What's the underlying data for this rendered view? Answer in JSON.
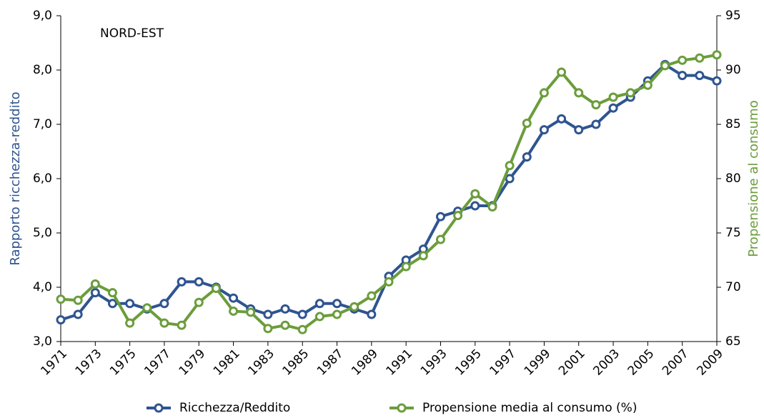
{
  "chart_data": {
    "type": "line",
    "annotation": "NORD-EST",
    "ylabel": "Rapporto ricchezza-reddito",
    "y2label": "Propensione al consumo",
    "x": [
      1971,
      1972,
      1973,
      1974,
      1975,
      1976,
      1977,
      1978,
      1979,
      1980,
      1981,
      1982,
      1983,
      1984,
      1985,
      1986,
      1987,
      1988,
      1989,
      1990,
      1991,
      1992,
      1993,
      1994,
      1995,
      1996,
      1997,
      1998,
      1999,
      2000,
      2001,
      2002,
      2003,
      2004,
      2005,
      2006,
      2007,
      2008,
      2009
    ],
    "xlim": [
      1971,
      2009
    ],
    "xticks": [
      1971,
      1973,
      1975,
      1977,
      1979,
      1981,
      1983,
      1985,
      1987,
      1989,
      1991,
      1993,
      1995,
      1997,
      1999,
      2001,
      2003,
      2005,
      2007,
      2009
    ],
    "ylim": [
      3,
      9
    ],
    "yticks": [
      {
        "value": 3,
        "label": "3,0"
      },
      {
        "value": 4,
        "label": "4,0"
      },
      {
        "value": 5,
        "label": "5,0"
      },
      {
        "value": 6,
        "label": "6,0"
      },
      {
        "value": 7,
        "label": "7,0"
      },
      {
        "value": 8,
        "label": "8,0"
      },
      {
        "value": 9,
        "label": "9,0"
      }
    ],
    "y2lim": [
      65,
      95
    ],
    "y2ticks": [
      65,
      70,
      75,
      80,
      85,
      90,
      95
    ],
    "legend": "bottom",
    "series": [
      {
        "name": "Ricchezza/Reddito",
        "color": "#2f5490",
        "axis": "y",
        "values": [
          3.4,
          3.5,
          3.9,
          3.7,
          3.7,
          3.6,
          3.7,
          4.1,
          4.1,
          4.0,
          3.8,
          3.6,
          3.5,
          3.6,
          3.5,
          3.7,
          3.7,
          3.6,
          3.5,
          4.2,
          4.5,
          4.7,
          5.3,
          5.4,
          5.5,
          5.5,
          6.0,
          6.4,
          6.9,
          7.1,
          6.9,
          7.0,
          7.3,
          7.5,
          7.8,
          8.1,
          7.9,
          7.9,
          7.8
        ]
      },
      {
        "name": "Propensione media al consumo (%)",
        "color": "#6b9d3c",
        "axis": "y2",
        "values": [
          68.9,
          68.8,
          70.3,
          69.5,
          66.7,
          68.1,
          66.7,
          66.5,
          68.6,
          69.9,
          67.8,
          67.7,
          66.2,
          66.5,
          66.1,
          67.3,
          67.5,
          68.2,
          69.2,
          70.5,
          71.9,
          72.9,
          74.4,
          76.6,
          78.6,
          77.4,
          81.2,
          85.1,
          87.9,
          89.8,
          87.9,
          86.8,
          87.5,
          87.9,
          88.6,
          90.4,
          90.9,
          91.1,
          91.4
        ]
      }
    ]
  }
}
